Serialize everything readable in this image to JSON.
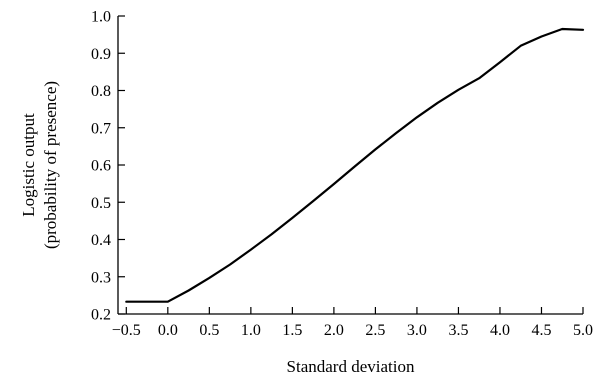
{
  "chart_data": {
    "type": "line",
    "title": "",
    "xlabel": "Standard deviation",
    "ylabel_lines": [
      "Logistic output",
      "(probability of presence)"
    ],
    "xlim": [
      -0.6,
      5.0
    ],
    "ylim": [
      0.2,
      1.0
    ],
    "xticks": [
      -0.5,
      0.0,
      0.5,
      1.0,
      1.5,
      2.0,
      2.5,
      3.0,
      3.5,
      4.0,
      4.5,
      5.0
    ],
    "xtick_labels": [
      "−0.5",
      "0.0",
      "0.5",
      "1.0",
      "1.5",
      "2.0",
      "2.5",
      "3.0",
      "3.5",
      "4.0",
      "4.5",
      "5.0"
    ],
    "yticks": [
      0.2,
      0.3,
      0.4,
      0.5,
      0.6,
      0.7,
      0.8,
      0.9,
      1.0
    ],
    "ytick_labels": [
      "0.2",
      "0.3",
      "0.4",
      "0.5",
      "0.6",
      "0.7",
      "0.8",
      "0.9",
      "1.0"
    ],
    "grid": false,
    "series": [
      {
        "color": "#000000",
        "x": [
          -0.5,
          -0.25,
          0.0,
          0.25,
          0.5,
          0.75,
          1.0,
          1.25,
          1.5,
          1.75,
          2.0,
          2.25,
          2.5,
          2.75,
          3.0,
          3.25,
          3.5,
          3.75,
          4.0,
          4.25,
          4.5,
          4.75,
          5.0
        ],
        "y": [
          0.233,
          0.233,
          0.233,
          0.263,
          0.297,
          0.333,
          0.373,
          0.414,
          0.458,
          0.503,
          0.549,
          0.596,
          0.642,
          0.686,
          0.728,
          0.767,
          0.802,
          0.833,
          0.876,
          0.92,
          0.945,
          0.965,
          0.963
        ]
      }
    ]
  }
}
